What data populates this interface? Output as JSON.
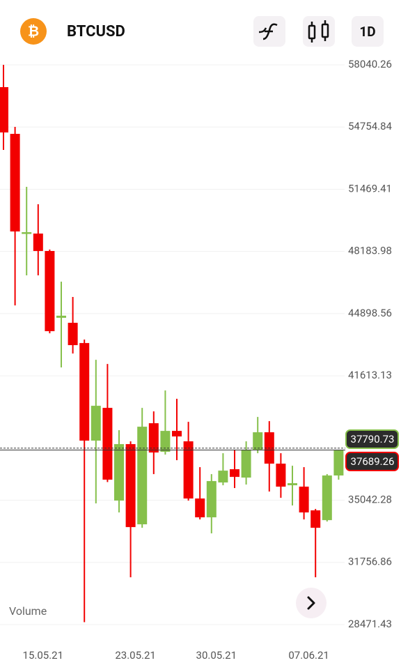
{
  "header": {
    "logo": "₿",
    "symbol": "BTCUSD",
    "interval": "1D"
  },
  "chart_data": {
    "type": "candlestick",
    "up_color": "#86c04b",
    "down_color": "#f20000",
    "categories": [
      null,
      null,
      null,
      "15.05.21",
      null,
      null,
      null,
      null,
      null,
      null,
      null,
      "23.05.21",
      null,
      null,
      null,
      null,
      null,
      null,
      "30.05.21",
      null,
      null,
      null,
      null,
      null,
      null,
      null,
      "07.06.21",
      null,
      null,
      null
    ],
    "open": [
      56862,
      54394,
      49127,
      49127,
      48207,
      44678,
      44413,
      43344,
      38189,
      39920,
      35022,
      38005,
      33769,
      39109,
      37599,
      38704,
      38152,
      35132,
      34138,
      35979,
      36679,
      36237,
      37709,
      38631,
      36973,
      35832,
      35758,
      34506,
      33990,
      36348
    ],
    "high": [
      58040,
      54762,
      51595,
      50674,
      48280,
      46586,
      45776,
      43529,
      42461,
      42240,
      38741,
      38152,
      39920,
      39735,
      40841,
      40399,
      39183,
      36789,
      36421,
      37525,
      37709,
      38152,
      39441,
      39220,
      37525,
      36863,
      36789,
      34580,
      36421,
      37709
    ],
    "low": [
      53547,
      45334,
      46918,
      46918,
      43861,
      42056,
      42793,
      28600,
      34875,
      36000,
      34396,
      30970,
      33585,
      36421,
      37451,
      37157,
      35022,
      34027,
      33291,
      35832,
      35685,
      35869,
      37525,
      35501,
      35169,
      34764,
      34027,
      30970,
      33917,
      36126
    ],
    "close": [
      54468,
      49238,
      49200,
      48207,
      43971,
      44789,
      43234,
      38189,
      40030,
      36126,
      38005,
      33622,
      38925,
      37562,
      38704,
      38410,
      35132,
      34138,
      36053,
      36605,
      36274,
      37709,
      38631,
      36973,
      35758,
      35942,
      34396,
      33585,
      36348,
      37689.26
    ],
    "ylim": [
      28471.43,
      58040.26
    ],
    "yticks": [
      58040.26,
      54754.84,
      51469.41,
      48183.98,
      44898.56,
      41613.13,
      35042.28,
      31756.86,
      28471.43
    ],
    "grid": true,
    "price_lines": [
      {
        "value": 37790.73,
        "color": "#86c04b",
        "style": "dashed"
      },
      {
        "value": 37689.26,
        "color": "#f20000",
        "style": "solid"
      }
    ],
    "volume_label": "Volume"
  }
}
